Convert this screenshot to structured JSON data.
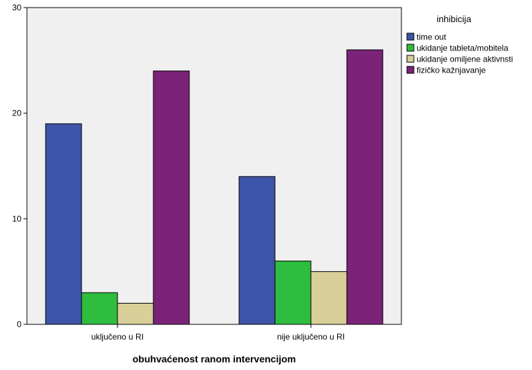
{
  "chart_data": {
    "type": "bar",
    "categories": [
      "uključeno u RI",
      "nije uključeno u RI"
    ],
    "series": [
      {
        "name": "time out",
        "values": [
          19,
          14
        ],
        "color": "#3d55a8"
      },
      {
        "name": "ukidanje tableta/mobitela",
        "values": [
          3,
          6
        ],
        "color": "#2ebd3e"
      },
      {
        "name": "ukidanje omiljene aktivnsti",
        "values": [
          2,
          5
        ],
        "color": "#d8cf99"
      },
      {
        "name": "fizičko kažnjavanje",
        "values": [
          24,
          26
        ],
        "color": "#7a2378"
      }
    ],
    "xlabel": "obuhvaćenost ranom intervencijom",
    "ylabel": "",
    "ylim": [
      0,
      30
    ],
    "yticks": [
      0,
      10,
      20,
      30
    ],
    "legend_title": "inhibicija",
    "legend_position": "top-right",
    "plot_background": "#f0f0f0",
    "grid": false
  }
}
